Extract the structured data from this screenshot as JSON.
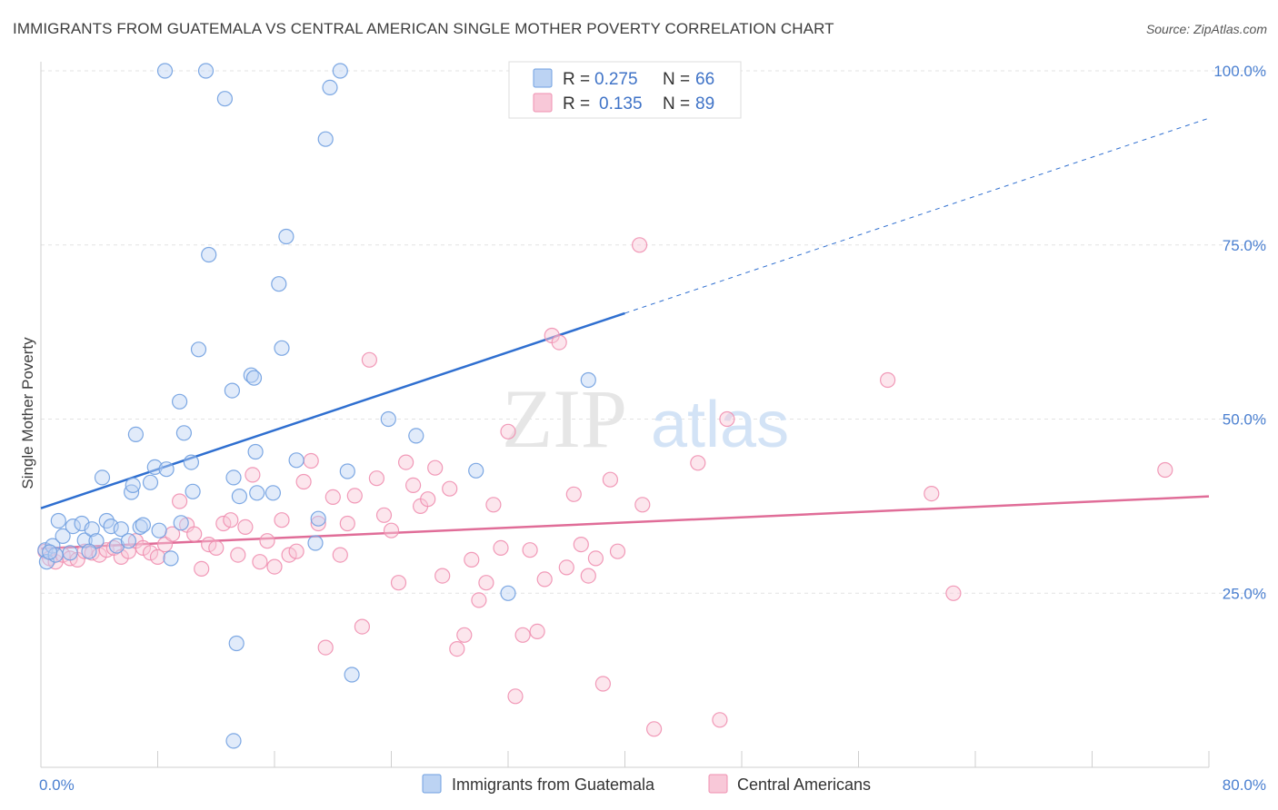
{
  "title": "IMMIGRANTS FROM GUATEMALA VS CENTRAL AMERICAN SINGLE MOTHER POVERTY CORRELATION CHART",
  "source": "Source: ZipAtlas.com",
  "watermark": {
    "part1": "ZIP",
    "part2": "atlas"
  },
  "colors": {
    "blue": "#6f9fe0",
    "blue_fill": "#bcd3f3",
    "blue_line": "#2f6fd0",
    "pink": "#ef8fb0",
    "pink_fill": "#f8c8d8",
    "pink_line": "#e06d98",
    "tick_text": "#4a7fd0"
  },
  "legend": {
    "rows": [
      {
        "r_label": "R = ",
        "r_value": "0.275",
        "n_label": "N = ",
        "n_value": "66"
      },
      {
        "r_label": "R = ",
        "r_value": "0.135",
        "n_label": "N = ",
        "n_value": "89"
      }
    ]
  },
  "chart_data": {
    "type": "scatter",
    "title": "IMMIGRANTS FROM GUATEMALA VS CENTRAL AMERICAN SINGLE MOTHER POVERTY CORRELATION CHART",
    "xlabel": "",
    "ylabel": "Single Mother Poverty",
    "xlim": [
      0,
      80
    ],
    "ylim": [
      0,
      100
    ],
    "x_tick_labels": [
      "0.0%",
      "80.0%"
    ],
    "y_tick_labels": [
      "25.0%",
      "50.0%",
      "75.0%",
      "100.0%"
    ],
    "y_ticks": [
      25,
      50,
      75,
      100
    ],
    "grid": true,
    "legend_position": "top-center",
    "series": [
      {
        "name": "Immigrants from Guatemala",
        "stats": {
          "R": 0.275,
          "N": 66
        },
        "trend": {
          "x0": 0,
          "y0": 37.2,
          "x1": 40,
          "y1": 65.2,
          "dashed_to_x": 80,
          "dashed_to_y": 93.2
        },
        "points": [
          [
            0.3,
            31.2
          ],
          [
            0.4,
            29.5
          ],
          [
            0.8,
            31.8
          ],
          [
            1.2,
            35.4
          ],
          [
            1.5,
            33.2
          ],
          [
            2.0,
            30.8
          ],
          [
            2.2,
            34.6
          ],
          [
            2.8,
            35.0
          ],
          [
            3.0,
            32.6
          ],
          [
            3.5,
            34.2
          ],
          [
            3.8,
            32.5
          ],
          [
            4.2,
            41.6
          ],
          [
            4.5,
            35.4
          ],
          [
            4.8,
            34.6
          ],
          [
            5.2,
            31.8
          ],
          [
            5.5,
            34.2
          ],
          [
            6.0,
            32.5
          ],
          [
            6.2,
            39.5
          ],
          [
            6.3,
            40.5
          ],
          [
            6.5,
            47.8
          ],
          [
            6.8,
            34.5
          ],
          [
            7.0,
            34.8
          ],
          [
            7.5,
            40.9
          ],
          [
            7.8,
            43.1
          ],
          [
            8.1,
            34.0
          ],
          [
            8.5,
            100.0
          ],
          [
            8.6,
            42.8
          ],
          [
            8.9,
            30.0
          ],
          [
            9.5,
            52.5
          ],
          [
            9.6,
            35.1
          ],
          [
            9.8,
            48.0
          ],
          [
            10.3,
            43.8
          ],
          [
            10.4,
            39.6
          ],
          [
            10.8,
            60.0
          ],
          [
            11.3,
            100.0
          ],
          [
            11.5,
            73.6
          ],
          [
            12.6,
            96.0
          ],
          [
            13.1,
            54.1
          ],
          [
            13.2,
            41.6
          ],
          [
            13.4,
            17.8
          ],
          [
            13.6,
            38.9
          ],
          [
            14.4,
            56.3
          ],
          [
            14.6,
            55.9
          ],
          [
            14.7,
            45.3
          ],
          [
            14.8,
            39.4
          ],
          [
            15.9,
            39.4
          ],
          [
            16.3,
            69.4
          ],
          [
            16.5,
            60.2
          ],
          [
            16.8,
            76.2
          ],
          [
            17.5,
            44.1
          ],
          [
            18.8,
            32.2
          ],
          [
            19.0,
            35.7
          ],
          [
            19.5,
            90.2
          ],
          [
            19.8,
            97.6
          ],
          [
            20.5,
            100.0
          ],
          [
            21.0,
            42.5
          ],
          [
            21.3,
            13.3
          ],
          [
            23.8,
            50.0
          ],
          [
            25.7,
            47.6
          ],
          [
            29.8,
            42.6
          ],
          [
            32.0,
            25.0
          ],
          [
            37.5,
            55.6
          ],
          [
            13.2,
            3.8
          ],
          [
            3.3,
            31.0
          ],
          [
            1.0,
            30.5
          ],
          [
            0.6,
            30.9
          ]
        ]
      },
      {
        "name": "Central Americans",
        "stats": {
          "R": 0.135,
          "N": 89
        },
        "trend": {
          "x0": 0,
          "y0": 31.4,
          "x1": 80,
          "y1": 38.9
        },
        "points": [
          [
            0.3,
            31.0
          ],
          [
            0.6,
            30.0
          ],
          [
            1.0,
            29.5
          ],
          [
            1.5,
            30.5
          ],
          [
            2.0,
            30.0
          ],
          [
            2.5,
            29.8
          ],
          [
            3.0,
            31.0
          ],
          [
            3.5,
            30.8
          ],
          [
            4.0,
            30.5
          ],
          [
            4.5,
            31.2
          ],
          [
            5.0,
            31.5
          ],
          [
            5.5,
            30.2
          ],
          [
            6.0,
            31.0
          ],
          [
            6.5,
            32.5
          ],
          [
            7.0,
            31.5
          ],
          [
            7.5,
            30.8
          ],
          [
            8.0,
            30.2
          ],
          [
            8.5,
            32.0
          ],
          [
            9.0,
            33.5
          ],
          [
            9.5,
            38.2
          ],
          [
            10.0,
            34.8
          ],
          [
            10.5,
            33.5
          ],
          [
            11.0,
            28.5
          ],
          [
            11.5,
            32.0
          ],
          [
            12.0,
            31.5
          ],
          [
            12.5,
            35.0
          ],
          [
            13.0,
            35.5
          ],
          [
            13.5,
            30.5
          ],
          [
            14.0,
            34.5
          ],
          [
            14.5,
            42.0
          ],
          [
            15.0,
            29.5
          ],
          [
            15.5,
            32.5
          ],
          [
            16.0,
            28.8
          ],
          [
            16.5,
            35.5
          ],
          [
            17.0,
            30.5
          ],
          [
            17.5,
            31.0
          ],
          [
            18.0,
            41.0
          ],
          [
            18.5,
            44.0
          ],
          [
            19.0,
            35.0
          ],
          [
            19.5,
            17.2
          ],
          [
            20.0,
            38.8
          ],
          [
            20.5,
            30.5
          ],
          [
            21.0,
            35.0
          ],
          [
            21.5,
            39.0
          ],
          [
            22.0,
            20.2
          ],
          [
            22.5,
            58.5
          ],
          [
            23.0,
            41.5
          ],
          [
            23.5,
            36.2
          ],
          [
            24.0,
            34.0
          ],
          [
            24.5,
            26.5
          ],
          [
            25.0,
            43.8
          ],
          [
            25.5,
            40.5
          ],
          [
            26.0,
            37.5
          ],
          [
            26.5,
            38.5
          ],
          [
            27.0,
            43.0
          ],
          [
            27.5,
            27.5
          ],
          [
            28.0,
            40.0
          ],
          [
            28.5,
            17.0
          ],
          [
            29.0,
            19.0
          ],
          [
            29.5,
            29.8
          ],
          [
            30.0,
            24.0
          ],
          [
            30.5,
            26.5
          ],
          [
            31.0,
            37.7
          ],
          [
            31.5,
            31.5
          ],
          [
            32.0,
            48.2
          ],
          [
            32.5,
            10.2
          ],
          [
            33.0,
            19.0
          ],
          [
            33.5,
            31.2
          ],
          [
            34.0,
            19.5
          ],
          [
            34.5,
            27.0
          ],
          [
            35.0,
            62.0
          ],
          [
            35.5,
            61.0
          ],
          [
            36.0,
            28.7
          ],
          [
            36.5,
            39.2
          ],
          [
            37.0,
            32.0
          ],
          [
            37.5,
            27.5
          ],
          [
            38.0,
            30.0
          ],
          [
            38.5,
            12.0
          ],
          [
            39.0,
            41.3
          ],
          [
            39.5,
            31.0
          ],
          [
            41.0,
            75.0
          ],
          [
            41.2,
            37.7
          ],
          [
            42.0,
            5.5
          ],
          [
            45.0,
            43.7
          ],
          [
            46.5,
            6.8
          ],
          [
            47.0,
            50.0
          ],
          [
            58.0,
            55.6
          ],
          [
            61.0,
            39.3
          ],
          [
            62.5,
            25.0
          ],
          [
            77.0,
            42.7
          ]
        ]
      }
    ]
  }
}
